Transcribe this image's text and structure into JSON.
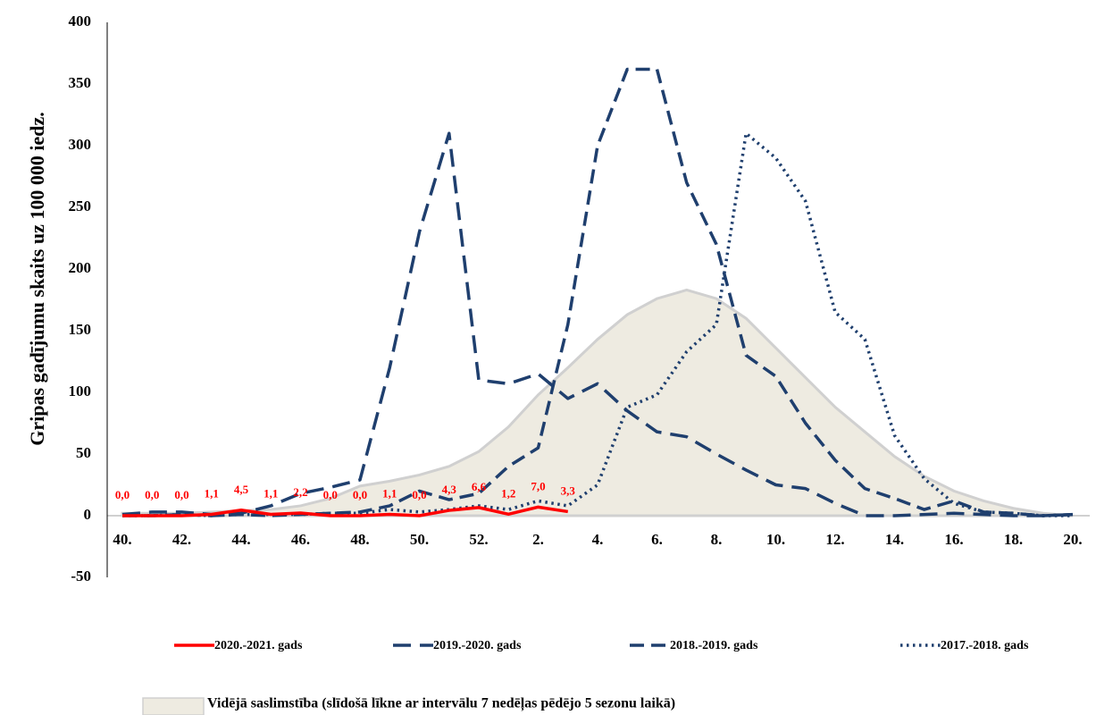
{
  "chart_data": {
    "type": "line",
    "y_label": "Gripas gadījumu skaits uz 100 000 iedz.",
    "categories": [
      "40.",
      null,
      "42.",
      null,
      "44.",
      null,
      "46.",
      null,
      "48.",
      null,
      "50.",
      null,
      "52.",
      null,
      "2.",
      null,
      "4.",
      null,
      "6.",
      null,
      "8.",
      null,
      "10.",
      null,
      "12.",
      null,
      "14.",
      null,
      "16.",
      null,
      "18.",
      null,
      "20."
    ],
    "ylim": [
      -50,
      400
    ],
    "yticks": [
      -50,
      0,
      50,
      100,
      150,
      200,
      250,
      300,
      350,
      400
    ],
    "grid": false,
    "area": {
      "name": "Vidējā saslimstība (slīdošā līkne ar intervālu 7 nedēļas pēdējo 5 sezonu laikā)",
      "color": "#eeebe1",
      "values": [
        2,
        2,
        2,
        3,
        4,
        5,
        8,
        14,
        24,
        28,
        33,
        40,
        52,
        72,
        98,
        120,
        143,
        163,
        176,
        183,
        176,
        160,
        136,
        112,
        88,
        68,
        48,
        32,
        20,
        12,
        6,
        2,
        0
      ]
    },
    "series": [
      {
        "name": "2020.-2021. gads",
        "color": "#ff0000",
        "dash": "solid",
        "values": [
          0.0,
          0.0,
          0.0,
          1.1,
          4.5,
          1.1,
          2.2,
          0.0,
          0.0,
          1.1,
          0.0,
          4.3,
          6.6,
          1.2,
          7.0,
          3.3,
          null,
          null,
          null,
          null,
          null,
          null,
          null,
          null,
          null,
          null,
          null,
          null,
          null,
          null,
          null,
          null,
          null
        ],
        "value_labels": [
          "0,0",
          "0,0",
          "0,0",
          "1,1",
          "4,5",
          "1,1",
          "2,2",
          "0,0",
          "0,0",
          "1,1",
          "0,0",
          "4,3",
          "6,6",
          "1,2",
          "7,0",
          "3,3",
          null,
          null,
          null,
          null,
          null,
          null,
          null,
          null,
          null,
          null,
          null,
          null,
          null,
          null,
          null,
          null,
          null
        ]
      },
      {
        "name": "2019.-2020. gads",
        "color": "#1f3f6e",
        "dash": "long-dash",
        "values": [
          1,
          3,
          3,
          1,
          2,
          8,
          18,
          23,
          29,
          120,
          230,
          310,
          110,
          107,
          115,
          95,
          107,
          85,
          68,
          64,
          50,
          37,
          25,
          22,
          10,
          0,
          0,
          1,
          2,
          1,
          0,
          0,
          1
        ]
      },
      {
        "name": "2018.-2019. gads",
        "color": "#1f3f6e",
        "dash": "dash",
        "values": [
          0,
          0,
          1,
          0,
          1,
          0,
          1,
          2,
          3,
          8,
          20,
          13,
          18,
          40,
          55,
          155,
          300,
          362,
          362,
          270,
          220,
          130,
          113,
          75,
          45,
          22,
          14,
          5,
          12,
          3,
          2,
          0,
          1
        ]
      },
      {
        "name": "2017.-2018. gads",
        "color": "#1f3f6e",
        "dash": "dotted",
        "values": [
          0,
          0,
          1,
          0,
          1,
          1,
          1,
          2,
          2,
          5,
          3,
          5,
          8,
          5,
          12,
          8,
          25,
          88,
          98,
          133,
          155,
          310,
          290,
          255,
          165,
          143,
          65,
          30,
          10,
          3,
          2,
          0,
          0
        ]
      }
    ]
  }
}
